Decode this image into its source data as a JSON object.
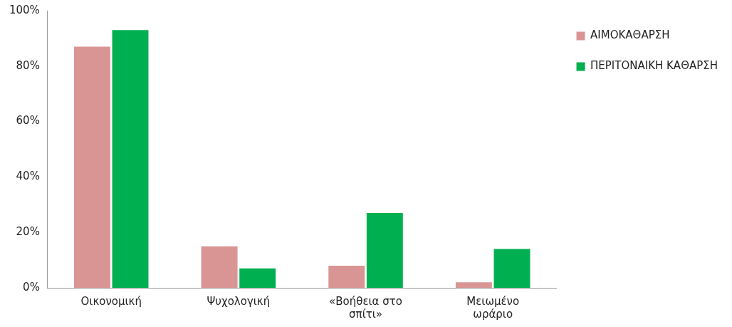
{
  "chart_data": {
    "type": "bar",
    "categories": [
      "Οικονομική",
      "Ψυχολογική",
      "«Βοήθεια στο σπίτι»",
      "Μειωμένο ωράριο"
    ],
    "series": [
      {
        "name": "ΑΙΜΟΚΑΘΑΡΣΗ",
        "color": "#d99594",
        "values": [
          87,
          15,
          8,
          2
        ]
      },
      {
        "name": "ΠΕΡΙΤΟΝΑΙΚΗ ΚΑΘΑΡΣΗ",
        "color": "#00b050",
        "values": [
          93,
          7,
          27,
          14
        ]
      }
    ],
    "ylim": [
      0,
      100
    ],
    "yticks": [
      {
        "value": 0,
        "label": "0%"
      },
      {
        "value": 20,
        "label": "20%"
      },
      {
        "value": 40,
        "label": "40%"
      },
      {
        "value": 60,
        "label": "60%"
      },
      {
        "value": 80,
        "label": "80%"
      },
      {
        "value": 100,
        "label": "100%"
      }
    ],
    "grid": false,
    "legend": "right"
  }
}
